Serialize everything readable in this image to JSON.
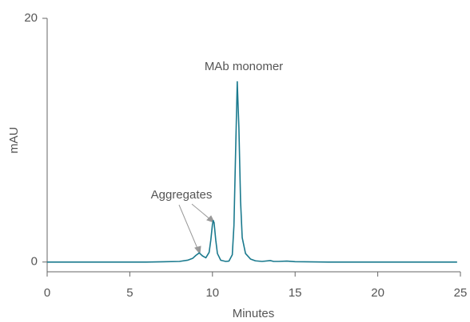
{
  "chart_data": {
    "type": "line",
    "x_label": "Minutes",
    "y_label": "mAU",
    "annotations": [
      {
        "text": "MAb monomer"
      },
      {
        "text": "Aggregates"
      }
    ],
    "xlim": [
      0,
      25
    ],
    "xticks": [
      0,
      5,
      10,
      15,
      20,
      25
    ],
    "ylim": [
      -0.8,
      20
    ],
    "yticks": [
      0,
      20
    ],
    "series": [
      {
        "color": "#1b7a8e",
        "x": [
          0,
          2,
          4,
          6,
          7,
          8,
          8.5,
          8.8,
          9.0,
          9.2,
          9.4,
          9.6,
          9.8,
          9.9,
          10.0,
          10.05,
          10.1,
          10.2,
          10.3,
          10.5,
          10.8,
          11.0,
          11.2,
          11.3,
          11.4,
          11.5,
          11.6,
          11.7,
          11.8,
          12.0,
          12.3,
          12.6,
          13.0,
          13.5,
          13.7,
          14.0,
          14.5,
          15,
          17,
          20,
          24.8
        ],
        "values": [
          0,
          0,
          0,
          0,
          0.02,
          0.05,
          0.15,
          0.3,
          0.55,
          0.75,
          0.5,
          0.35,
          0.8,
          1.8,
          3.1,
          3.4,
          3.2,
          1.8,
          0.7,
          0.15,
          0.05,
          0.08,
          0.6,
          3,
          9,
          14.8,
          11,
          5,
          2,
          0.7,
          0.25,
          0.1,
          0.05,
          0.12,
          0.05,
          0.05,
          0.08,
          0.03,
          0,
          0,
          0
        ]
      }
    ]
  }
}
